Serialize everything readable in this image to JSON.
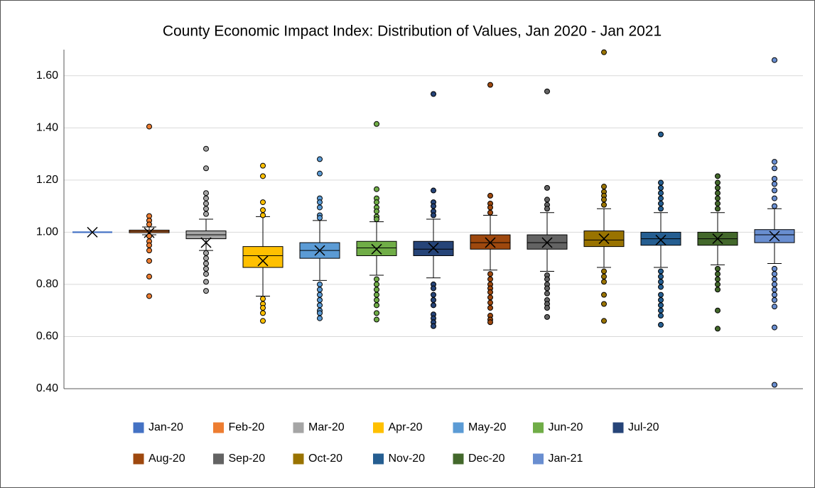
{
  "chart_data": {
    "type": "box",
    "title": "County Economic Impact Index: Distribution of Values, Jan 2020 - Jan 2021",
    "ylim": [
      0.4,
      1.7
    ],
    "yticks": [
      {
        "value": 0.4,
        "label": "0.40"
      },
      {
        "value": 0.6,
        "label": "0.60"
      },
      {
        "value": 0.8,
        "label": "0.80"
      },
      {
        "value": 1.0,
        "label": "1.00"
      },
      {
        "value": 1.2,
        "label": "1.20"
      },
      {
        "value": 1.4,
        "label": "1.40"
      },
      {
        "value": 1.6,
        "label": "1.60"
      }
    ],
    "grid": true,
    "legend": "bottom",
    "series": [
      {
        "name": "Jan-20",
        "color": "#4472c4",
        "whisker_low": 1.0,
        "q1": 1.0,
        "median": 1.0,
        "q3": 1.0,
        "whisker_high": 1.0,
        "mean": 1.0,
        "outliers": []
      },
      {
        "name": "Feb-20",
        "color": "#ed7d31",
        "whisker_low": 0.99,
        "q1": 0.998,
        "median": 1.003,
        "q3": 1.008,
        "whisker_high": 1.02,
        "mean": 0.998,
        "outliers": [
          1.405,
          1.062,
          1.045,
          1.03,
          0.985,
          0.965,
          0.95,
          0.93,
          0.89,
          0.83,
          0.755
        ]
      },
      {
        "name": "Mar-20",
        "color": "#a5a5a5",
        "whisker_low": 0.93,
        "q1": 0.975,
        "median": 0.99,
        "q3": 1.005,
        "whisker_high": 1.05,
        "mean": 0.96,
        "outliers": [
          1.32,
          1.245,
          1.15,
          1.13,
          1.11,
          1.09,
          1.07,
          0.92,
          0.9,
          0.88,
          0.86,
          0.84,
          0.81,
          0.775
        ]
      },
      {
        "name": "Apr-20",
        "color": "#ffc000",
        "whisker_low": 0.755,
        "q1": 0.865,
        "median": 0.91,
        "q3": 0.945,
        "whisker_high": 1.06,
        "mean": 0.89,
        "outliers": [
          1.255,
          1.215,
          1.115,
          1.085,
          1.065,
          0.745,
          0.725,
          0.71,
          0.69,
          0.66
        ]
      },
      {
        "name": "May-20",
        "color": "#5b9bd5",
        "whisker_low": 0.815,
        "q1": 0.9,
        "median": 0.93,
        "q3": 0.96,
        "whisker_high": 1.045,
        "mean": 0.93,
        "outliers": [
          1.28,
          1.225,
          1.13,
          1.115,
          1.095,
          1.065,
          1.055,
          0.8,
          0.78,
          0.76,
          0.74,
          0.72,
          0.7,
          0.69,
          0.67
        ]
      },
      {
        "name": "Jun-20",
        "color": "#70ad47",
        "whisker_low": 0.835,
        "q1": 0.91,
        "median": 0.94,
        "q3": 0.965,
        "whisker_high": 1.04,
        "mean": 0.935,
        "outliers": [
          1.415,
          1.165,
          1.13,
          1.115,
          1.095,
          1.08,
          1.06,
          1.05,
          0.82,
          0.8,
          0.78,
          0.76,
          0.74,
          0.72,
          0.69,
          0.665
        ]
      },
      {
        "name": "Jul-20",
        "color": "#264478",
        "whisker_low": 0.825,
        "q1": 0.91,
        "median": 0.935,
        "q3": 0.965,
        "whisker_high": 1.05,
        "mean": 0.94,
        "outliers": [
          1.53,
          1.16,
          1.115,
          1.1,
          1.08,
          1.065,
          0.8,
          0.785,
          0.76,
          0.74,
          0.72,
          0.685,
          0.67,
          0.655,
          0.64
        ]
      },
      {
        "name": "Aug-20",
        "color": "#9e480e",
        "whisker_low": 0.855,
        "q1": 0.935,
        "median": 0.96,
        "q3": 0.99,
        "whisker_high": 1.065,
        "mean": 0.96,
        "outliers": [
          1.565,
          1.14,
          1.11,
          1.095,
          1.075,
          0.84,
          0.82,
          0.8,
          0.785,
          0.77,
          0.75,
          0.73,
          0.71,
          0.68,
          0.665,
          0.655
        ]
      },
      {
        "name": "Sep-20",
        "color": "#636363",
        "whisker_low": 0.85,
        "q1": 0.935,
        "median": 0.96,
        "q3": 0.99,
        "whisker_high": 1.075,
        "mean": 0.96,
        "outliers": [
          1.54,
          1.17,
          1.125,
          1.105,
          1.09,
          0.835,
          0.82,
          0.8,
          0.785,
          0.765,
          0.74,
          0.725,
          0.71,
          0.675
        ]
      },
      {
        "name": "Oct-20",
        "color": "#997300",
        "whisker_low": 0.865,
        "q1": 0.945,
        "median": 0.97,
        "q3": 1.005,
        "whisker_high": 1.09,
        "mean": 0.975,
        "outliers": [
          1.69,
          1.175,
          1.155,
          1.14,
          1.125,
          1.105,
          0.85,
          0.83,
          0.81,
          0.76,
          0.725,
          0.66
        ]
      },
      {
        "name": "Nov-20",
        "color": "#255e91",
        "whisker_low": 0.865,
        "q1": 0.95,
        "median": 0.975,
        "q3": 1.0,
        "whisker_high": 1.075,
        "mean": 0.97,
        "outliers": [
          1.375,
          1.19,
          1.17,
          1.15,
          1.13,
          1.11,
          1.09,
          0.85,
          0.83,
          0.81,
          0.79,
          0.76,
          0.74,
          0.72,
          0.7,
          0.68,
          0.645
        ]
      },
      {
        "name": "Dec-20",
        "color": "#43682b",
        "whisker_low": 0.875,
        "q1": 0.95,
        "median": 0.975,
        "q3": 1.0,
        "whisker_high": 1.075,
        "mean": 0.975,
        "outliers": [
          1.215,
          1.19,
          1.17,
          1.15,
          1.13,
          1.11,
          1.09,
          0.86,
          0.84,
          0.82,
          0.8,
          0.78,
          0.7,
          0.63
        ]
      },
      {
        "name": "Jan-21",
        "color": "#698ed0",
        "whisker_low": 0.88,
        "q1": 0.96,
        "median": 0.99,
        "q3": 1.01,
        "whisker_high": 1.09,
        "mean": 0.985,
        "outliers": [
          1.66,
          1.27,
          1.245,
          1.205,
          1.185,
          1.16,
          1.13,
          1.1,
          0.86,
          0.84,
          0.82,
          0.8,
          0.78,
          0.76,
          0.74,
          0.715,
          0.635,
          0.415
        ]
      }
    ]
  }
}
